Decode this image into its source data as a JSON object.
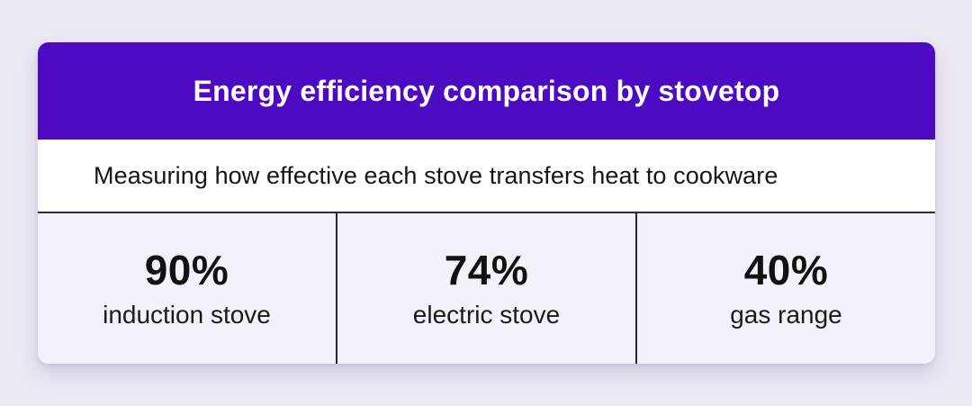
{
  "card": {
    "title": "Energy efficiency comparison by stovetop",
    "subtitle": "Measuring how effective each stove transfers heat to cookware",
    "stats": [
      {
        "value": "90%",
        "label": "induction stove"
      },
      {
        "value": "74%",
        "label": "electric stove"
      },
      {
        "value": "40%",
        "label": "gas range"
      }
    ]
  },
  "colors": {
    "page_bg": "#ECE9F3",
    "header_bg": "#4E0AC2",
    "stats_bg": "#F4F1FA",
    "divider": "#26262E",
    "title_text": "#FFFFFF",
    "body_text": "#141414"
  },
  "chart_data": {
    "type": "table",
    "title": "Energy efficiency comparison by stovetop",
    "subtitle": "Measuring how effective each stove transfers heat to cookware",
    "categories": [
      "induction stove",
      "electric stove",
      "gas range"
    ],
    "values": [
      90,
      74,
      40
    ],
    "unit": "%",
    "layout": "three-column stat card, values shown as bold percentages above labels"
  }
}
